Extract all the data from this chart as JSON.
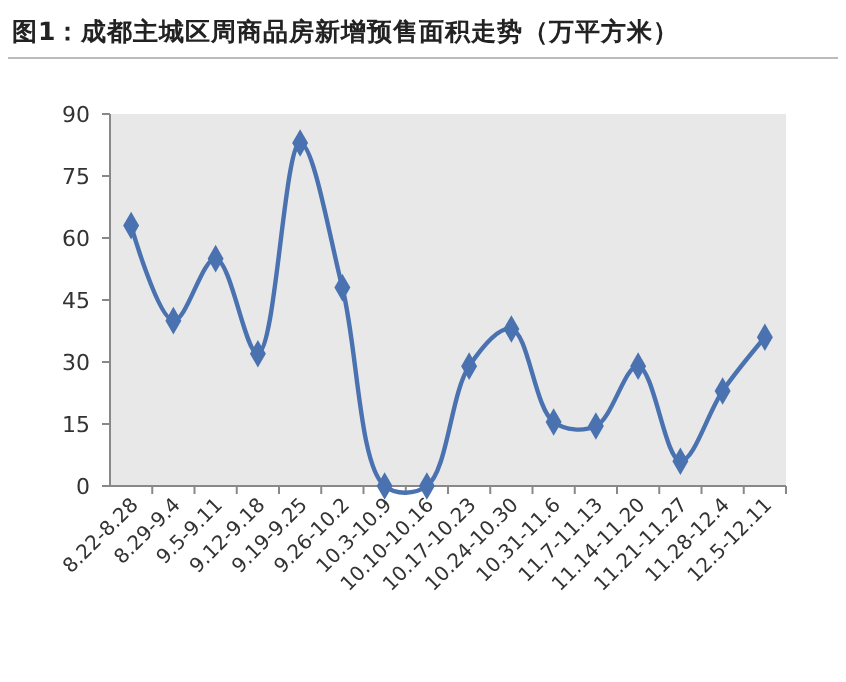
{
  "chart_data": {
    "type": "line",
    "title": "图1：成都主城区周商品房新增预售面积走势（万平方米）",
    "categories": [
      "8.22-8.28",
      "8.29-9.4",
      "9.5-9.11",
      "9.12-9.18",
      "9.19-9.25",
      "9.26-10.2",
      "10.3-10.9",
      "10.10-10.16",
      "10.17-10.23",
      "10.24-10.30",
      "10.31-11.6",
      "11.7-11.13",
      "11.14-11.20",
      "11.21-11.27",
      "11.28-12.4",
      "12.5-12.11"
    ],
    "series": [
      {
        "color": "#4a72b0",
        "values": [
          63,
          40,
          55,
          32,
          83,
          48,
          0,
          0,
          29,
          38,
          15.5,
          14.5,
          29,
          6,
          23,
          36
        ]
      }
    ],
    "ylim": [
      0,
      90
    ],
    "yticks": [
      0,
      15,
      30,
      45,
      60,
      75,
      90
    ],
    "grid": false,
    "marker": "diamond",
    "line_style": "solid"
  }
}
